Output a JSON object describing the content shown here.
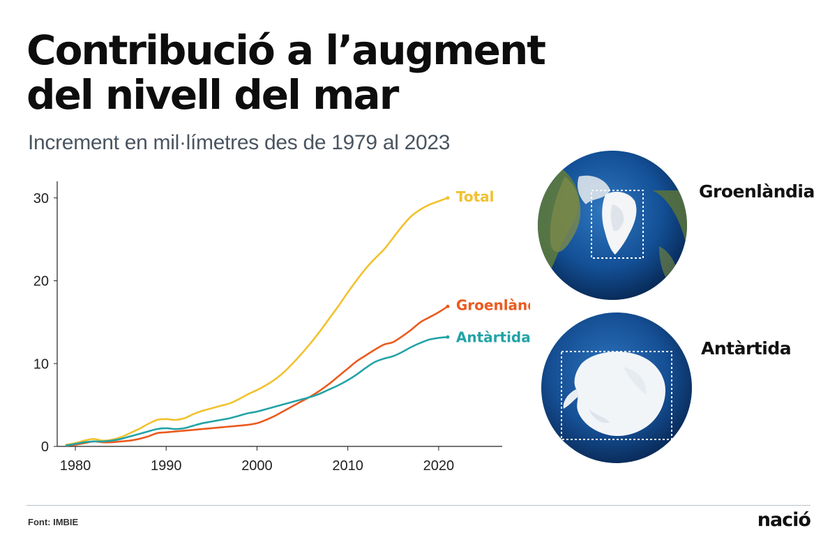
{
  "header": {
    "title_line1": "Contribució a l’augment",
    "title_line2": "del nivell del mar",
    "subtitle": "Increment en mil·límetres des de 1979 al 2023"
  },
  "chart_data": {
    "type": "line",
    "title": "Contribució a l’augment del nivell del mar",
    "subtitle": "Increment en mil·límetres des de 1979 al 2023",
    "xlabel": "",
    "ylabel": "",
    "xlim": [
      1978,
      2027
    ],
    "ylim": [
      0,
      32
    ],
    "xticks": [
      1980,
      1990,
      2000,
      2010,
      2020
    ],
    "yticks": [
      0,
      10,
      20,
      30
    ],
    "grid": false,
    "legend": "labels at line ends",
    "series": [
      {
        "name": "Total",
        "color": "#f2c12e",
        "x": [
          1979,
          1980,
          1981,
          1982,
          1983,
          1984,
          1985,
          1986,
          1987,
          1988,
          1989,
          1990,
          1991,
          1992,
          1993,
          1994,
          1995,
          1996,
          1997,
          1998,
          1999,
          2000,
          2001,
          2002,
          2003,
          2004,
          2005,
          2006,
          2007,
          2008,
          2009,
          2010,
          2011,
          2012,
          2013,
          2014,
          2015,
          2016,
          2017,
          2018,
          2019,
          2020,
          2021
        ],
        "values": [
          0.2,
          0.4,
          0.7,
          0.9,
          0.7,
          0.8,
          1.1,
          1.6,
          2.1,
          2.7,
          3.2,
          3.3,
          3.2,
          3.4,
          3.9,
          4.3,
          4.6,
          4.9,
          5.2,
          5.7,
          6.3,
          6.8,
          7.4,
          8.1,
          9.0,
          10.1,
          11.3,
          12.6,
          14.0,
          15.5,
          17.0,
          18.6,
          20.1,
          21.5,
          22.7,
          23.8,
          25.2,
          26.6,
          27.8,
          28.6,
          29.2,
          29.6,
          30.0
        ]
      },
      {
        "name": "Groenlàndia",
        "color": "#eb5a1e",
        "x": [
          1979,
          1980,
          1981,
          1982,
          1983,
          1984,
          1985,
          1986,
          1987,
          1988,
          1989,
          1990,
          1991,
          1992,
          1993,
          1994,
          1995,
          1996,
          1997,
          1998,
          1999,
          2000,
          2001,
          2002,
          2003,
          2004,
          2005,
          2006,
          2007,
          2008,
          2009,
          2010,
          2011,
          2012,
          2013,
          2014,
          2015,
          2016,
          2017,
          2018,
          2019,
          2020,
          2021
        ],
        "values": [
          0.1,
          0.2,
          0.4,
          0.6,
          0.5,
          0.5,
          0.6,
          0.7,
          0.9,
          1.2,
          1.6,
          1.7,
          1.8,
          1.9,
          2.0,
          2.1,
          2.2,
          2.3,
          2.4,
          2.5,
          2.6,
          2.8,
          3.2,
          3.7,
          4.3,
          4.9,
          5.5,
          6.1,
          6.8,
          7.6,
          8.5,
          9.4,
          10.3,
          11.0,
          11.7,
          12.3,
          12.6,
          13.3,
          14.1,
          15.0,
          15.6,
          16.2,
          16.9
        ]
      },
      {
        "name": "Antàrtida",
        "color": "#22a3a6",
        "x": [
          1979,
          1980,
          1981,
          1982,
          1983,
          1984,
          1985,
          1986,
          1987,
          1988,
          1989,
          1990,
          1991,
          1992,
          1993,
          1994,
          1995,
          1996,
          1997,
          1998,
          1999,
          2000,
          2001,
          2002,
          2003,
          2004,
          2005,
          2006,
          2007,
          2008,
          2009,
          2010,
          2011,
          2012,
          2013,
          2014,
          2015,
          2016,
          2017,
          2018,
          2019,
          2020,
          2021
        ],
        "values": [
          0.1,
          0.3,
          0.5,
          0.6,
          0.6,
          0.7,
          0.9,
          1.2,
          1.5,
          1.8,
          2.1,
          2.2,
          2.1,
          2.2,
          2.5,
          2.8,
          3.0,
          3.2,
          3.4,
          3.7,
          4.0,
          4.2,
          4.5,
          4.8,
          5.1,
          5.4,
          5.7,
          6.0,
          6.4,
          6.9,
          7.4,
          8.0,
          8.7,
          9.5,
          10.2,
          10.6,
          10.9,
          11.4,
          12.0,
          12.5,
          12.9,
          13.1,
          13.2
        ]
      }
    ]
  },
  "globes": [
    {
      "name": "Groenlàndia",
      "icon": "north-pole-globe-icon"
    },
    {
      "name": "Antàrtida",
      "icon": "south-pole-globe-icon"
    }
  ],
  "footer": {
    "source": "Font: IMBIE",
    "logo": "nació"
  }
}
